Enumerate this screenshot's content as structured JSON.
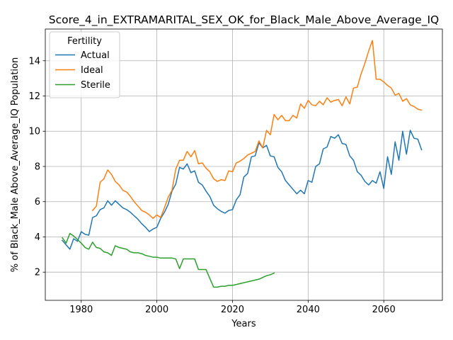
{
  "chart_data": {
    "type": "line",
    "title": "Score_4_in_EXTRAMARITAL_SEX_OK_for_Black_Male_Above_Average_IQ",
    "xlabel": "Years",
    "ylabel": "% of Black_Male Above_Average_IQ Population",
    "xlim": [
      1970.5,
      2075.5
    ],
    "ylim": [
      0.4,
      15.8
    ],
    "xticks": [
      1980,
      2000,
      2020,
      2040,
      2060
    ],
    "yticks": [
      2,
      4,
      6,
      8,
      10,
      12,
      14
    ],
    "grid": true,
    "legend": {
      "title": "Fertility",
      "placement": "upper-left"
    },
    "series": [
      {
        "name": "Actual",
        "color": "#1f77b4",
        "x": [
          1975,
          1976,
          1977,
          1978,
          1979,
          1980,
          1981,
          1982,
          1983,
          1984,
          1985,
          1986,
          1987,
          1988,
          1989,
          1990,
          1991,
          1992,
          1993,
          1994,
          1995,
          1996,
          1997,
          1998,
          1999,
          2000,
          2001,
          2002,
          2003,
          2004,
          2005,
          2006,
          2007,
          2008,
          2009,
          2010,
          2011,
          2012,
          2013,
          2014,
          2015,
          2016,
          2017,
          2018,
          2019,
          2020,
          2021,
          2022,
          2023,
          2024,
          2025,
          2026,
          2027,
          2028,
          2029,
          2030,
          2031,
          2032,
          2033,
          2034,
          2035,
          2036,
          2037,
          2038,
          2039,
          2040,
          2041,
          2042,
          2043,
          2044,
          2045,
          2046,
          2047,
          2048,
          2049,
          2050,
          2051,
          2052,
          2053,
          2054,
          2055,
          2056,
          2057,
          2058,
          2059,
          2060,
          2061,
          2062,
          2063,
          2064,
          2065,
          2066,
          2067,
          2068,
          2069,
          2070
        ],
        "values": [
          3.8,
          3.55,
          3.3,
          3.9,
          3.75,
          4.3,
          4.15,
          4.1,
          5.1,
          5.2,
          5.55,
          5.65,
          6.05,
          5.8,
          6.05,
          5.85,
          5.65,
          5.55,
          5.4,
          5.2,
          5.0,
          4.75,
          4.55,
          4.3,
          4.45,
          4.55,
          5.05,
          5.4,
          5.85,
          6.6,
          7.0,
          7.95,
          7.85,
          8.15,
          7.65,
          7.75,
          7.1,
          6.95,
          6.6,
          6.3,
          5.8,
          5.6,
          5.45,
          5.35,
          5.5,
          5.55,
          6.1,
          6.4,
          7.4,
          7.6,
          8.55,
          8.6,
          9.35,
          9.05,
          9.2,
          8.6,
          8.55,
          7.95,
          7.7,
          7.2,
          6.95,
          6.7,
          6.45,
          6.65,
          6.45,
          7.2,
          7.1,
          8.0,
          8.15,
          9.0,
          9.1,
          9.7,
          9.6,
          9.8,
          9.3,
          9.25,
          8.6,
          8.35,
          7.7,
          7.5,
          7.15,
          6.95,
          7.2,
          7.05,
          7.7,
          6.75,
          8.55,
          7.55,
          9.4,
          8.35,
          10.0,
          8.7,
          10.05,
          9.6,
          9.55,
          8.95
        ]
      },
      {
        "name": "Ideal",
        "color": "#ff7f0e",
        "x": [
          1983,
          1984,
          1985,
          1986,
          1987,
          1988,
          1989,
          1990,
          1991,
          1992,
          1993,
          1994,
          1995,
          1996,
          1997,
          1998,
          1999,
          2000,
          2001,
          2002,
          2003,
          2004,
          2005,
          2006,
          2007,
          2008,
          2009,
          2010,
          2011,
          2012,
          2013,
          2014,
          2015,
          2016,
          2017,
          2018,
          2019,
          2020,
          2021,
          2022,
          2023,
          2024,
          2025,
          2026,
          2027,
          2028,
          2029,
          2030,
          2031,
          2032,
          2033,
          2034,
          2035,
          2036,
          2037,
          2038,
          2039,
          2040,
          2041,
          2042,
          2043,
          2044,
          2045,
          2046,
          2047,
          2048,
          2049,
          2050,
          2051,
          2052,
          2053,
          2054,
          2055,
          2056,
          2057,
          2058,
          2059,
          2060,
          2061,
          2062,
          2063,
          2064,
          2065,
          2066,
          2067,
          2068,
          2069,
          2070
        ],
        "values": [
          5.5,
          5.75,
          7.1,
          7.3,
          7.8,
          7.55,
          7.15,
          6.95,
          6.65,
          6.55,
          6.3,
          6.0,
          5.75,
          5.5,
          5.4,
          5.25,
          5.05,
          5.25,
          5.1,
          5.65,
          6.25,
          6.65,
          7.85,
          8.35,
          8.35,
          8.85,
          8.55,
          8.9,
          8.15,
          8.2,
          7.9,
          7.7,
          7.3,
          7.15,
          7.25,
          7.2,
          7.75,
          7.7,
          8.2,
          8.3,
          8.45,
          8.65,
          8.75,
          8.85,
          9.45,
          9.05,
          10.05,
          9.8,
          10.95,
          10.65,
          10.9,
          10.6,
          10.6,
          10.9,
          10.75,
          11.55,
          11.3,
          11.75,
          11.5,
          11.45,
          11.7,
          11.5,
          11.9,
          11.65,
          11.75,
          11.8,
          11.45,
          11.95,
          11.55,
          12.45,
          12.5,
          13.25,
          13.85,
          14.55,
          15.15,
          12.95,
          12.95,
          12.8,
          12.6,
          12.45,
          12.05,
          12.15,
          11.7,
          11.85,
          11.5,
          11.4,
          11.25,
          11.2
        ]
      },
      {
        "name": "Sterile",
        "color": "#2ca02c",
        "x": [
          1975,
          1976,
          1977,
          1978,
          1979,
          1980,
          1981,
          1982,
          1983,
          1984,
          1985,
          1986,
          1987,
          1988,
          1989,
          1990,
          1991,
          1992,
          1993,
          1994,
          1995,
          1996,
          1997,
          1998,
          1999,
          2000,
          2001,
          2002,
          2003,
          2004,
          2005,
          2006,
          2007,
          2008,
          2009,
          2010,
          2011,
          2012,
          2013,
          2014,
          2015,
          2016,
          2017,
          2018,
          2019,
          2020,
          2021,
          2022,
          2023,
          2024,
          2025,
          2026,
          2027,
          2028,
          2029,
          2030,
          2031
        ],
        "values": [
          3.95,
          3.65,
          4.2,
          4.05,
          3.85,
          3.65,
          3.4,
          3.3,
          3.7,
          3.4,
          3.35,
          3.15,
          3.1,
          2.95,
          3.5,
          3.4,
          3.35,
          3.3,
          3.15,
          3.1,
          3.1,
          3.05,
          2.95,
          2.9,
          2.85,
          2.85,
          2.8,
          2.8,
          2.8,
          2.8,
          2.75,
          2.2,
          2.75,
          2.75,
          2.75,
          2.75,
          2.15,
          2.15,
          2.15,
          1.65,
          1.15,
          1.15,
          1.2,
          1.2,
          1.25,
          1.25,
          1.3,
          1.35,
          1.4,
          1.45,
          1.5,
          1.55,
          1.6,
          1.7,
          1.8,
          1.85,
          1.95
        ]
      }
    ]
  }
}
